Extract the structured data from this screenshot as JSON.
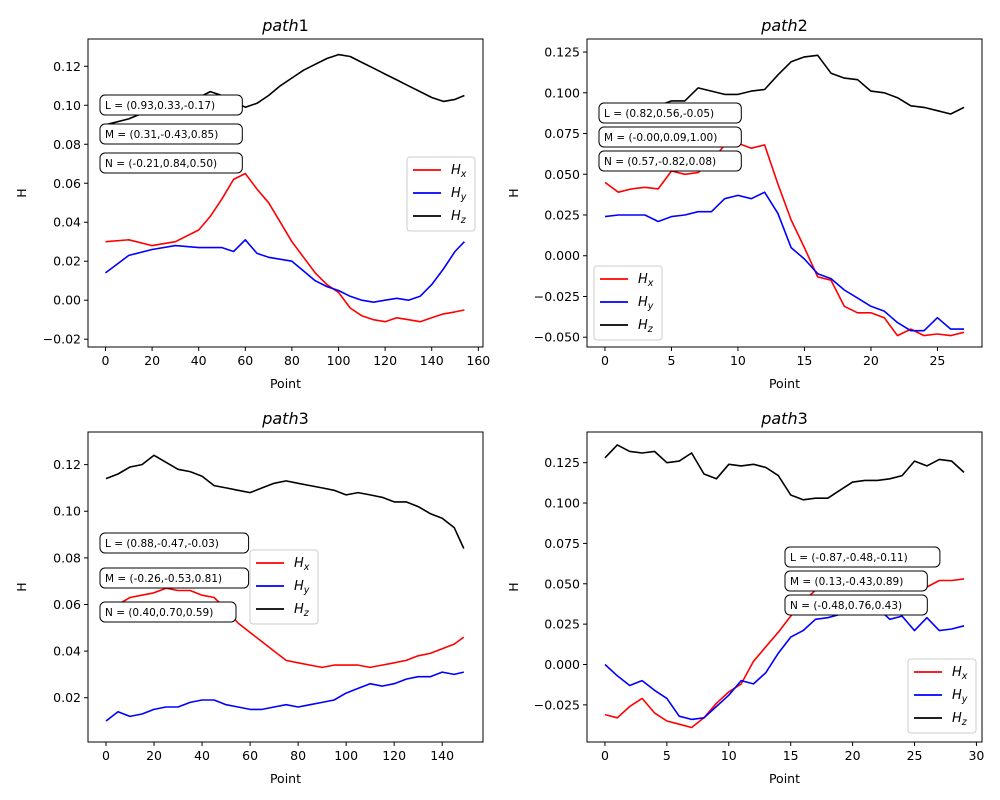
{
  "colors": {
    "Hx": "#ff0000",
    "Hy": "#0000ff",
    "Hz": "#000000"
  },
  "chart_data": [
    {
      "type": "line",
      "title": "path1",
      "xlabel": "Point",
      "ylabel": "H",
      "xlim": [
        -7.5,
        162
      ],
      "ylim": [
        -0.024,
        0.134
      ],
      "xticks": [
        0,
        20,
        40,
        60,
        80,
        100,
        120,
        140,
        160
      ],
      "yticks": [
        -0.02,
        0.0,
        0.02,
        0.04,
        0.06,
        0.08,
        0.1,
        0.12
      ],
      "ytick_labels": [
        "−0.02",
        "0.00",
        "0.02",
        "0.04",
        "0.06",
        "0.08",
        "0.10",
        "0.12"
      ],
      "annotations": [
        "L = (0.93,0.33,-0.17)",
        "M = (0.31,-0.43,0.85)",
        "N = (-0.21,0.84,0.50)"
      ],
      "annotation_placement": "left",
      "legend": {
        "placement": "center-right",
        "entries": [
          "Hx",
          "Hy",
          "Hz"
        ]
      },
      "series": [
        {
          "name": "Hx",
          "x": [
            0,
            10,
            20,
            30,
            40,
            45,
            50,
            55,
            60,
            65,
            70,
            75,
            80,
            85,
            90,
            95,
            100,
            105,
            110,
            115,
            120,
            125,
            130,
            135,
            140,
            145,
            150,
            154
          ],
          "values": [
            0.03,
            0.031,
            0.028,
            0.03,
            0.036,
            0.043,
            0.052,
            0.062,
            0.065,
            0.057,
            0.05,
            0.04,
            0.03,
            0.022,
            0.014,
            0.008,
            0.004,
            -0.004,
            -0.008,
            -0.01,
            -0.011,
            -0.009,
            -0.01,
            -0.011,
            -0.009,
            -0.007,
            -0.006,
            -0.005
          ]
        },
        {
          "name": "Hy",
          "x": [
            0,
            10,
            20,
            30,
            40,
            50,
            55,
            60,
            65,
            70,
            80,
            85,
            90,
            95,
            100,
            105,
            110,
            115,
            120,
            125,
            130,
            135,
            140,
            145,
            150,
            154
          ],
          "values": [
            0.014,
            0.023,
            0.026,
            0.028,
            0.027,
            0.027,
            0.025,
            0.031,
            0.024,
            0.022,
            0.02,
            0.015,
            0.01,
            0.007,
            0.005,
            0.002,
            0.0,
            -0.001,
            0.0,
            0.001,
            0.0,
            0.002,
            0.008,
            0.016,
            0.025,
            0.03
          ]
        },
        {
          "name": "Hz",
          "x": [
            0,
            10,
            20,
            30,
            40,
            45,
            50,
            55,
            60,
            65,
            70,
            75,
            80,
            85,
            90,
            95,
            100,
            105,
            110,
            115,
            120,
            125,
            130,
            135,
            140,
            145,
            150,
            154
          ],
          "values": [
            0.09,
            0.093,
            0.098,
            0.101,
            0.104,
            0.107,
            0.105,
            0.102,
            0.099,
            0.101,
            0.105,
            0.11,
            0.114,
            0.118,
            0.121,
            0.124,
            0.126,
            0.125,
            0.122,
            0.119,
            0.116,
            0.113,
            0.11,
            0.107,
            0.104,
            0.102,
            0.103,
            0.105
          ]
        }
      ]
    },
    {
      "type": "line",
      "title": "path2",
      "xlabel": "Point",
      "ylabel": "H",
      "xlim": [
        -1.35,
        28.35
      ],
      "ylim": [
        -0.056,
        0.133
      ],
      "xticks": [
        0,
        5,
        10,
        15,
        20,
        25
      ],
      "yticks": [
        -0.05,
        -0.025,
        0.0,
        0.025,
        0.05,
        0.075,
        0.1,
        0.125
      ],
      "ytick_labels": [
        "−0.050",
        "−0.025",
        "0.000",
        "0.025",
        "0.050",
        "0.075",
        "0.100",
        "0.125"
      ],
      "annotations": [
        "L = (0.82,0.56,-0.05)",
        "M = (-0.00,0.09,1.00)",
        "N = (0.57,-0.82,0.08)"
      ],
      "annotation_placement": "left",
      "legend": {
        "placement": "bottom-left",
        "entries": [
          "Hx",
          "Hy",
          "Hz"
        ]
      },
      "series": [
        {
          "name": "Hx",
          "x": [
            0,
            1,
            2,
            3,
            4,
            5,
            6,
            7,
            8,
            9,
            10,
            11,
            12,
            13,
            14,
            15,
            16,
            17,
            18,
            19,
            20,
            21,
            22,
            23,
            24,
            25,
            26,
            27
          ],
          "values": [
            0.045,
            0.039,
            0.041,
            0.042,
            0.041,
            0.052,
            0.05,
            0.051,
            0.058,
            0.068,
            0.069,
            0.066,
            0.068,
            0.044,
            0.022,
            0.005,
            -0.013,
            -0.015,
            -0.031,
            -0.035,
            -0.035,
            -0.038,
            -0.049,
            -0.045,
            -0.049,
            -0.048,
            -0.049,
            -0.047
          ]
        },
        {
          "name": "Hy",
          "x": [
            0,
            1,
            2,
            3,
            4,
            5,
            6,
            7,
            8,
            9,
            10,
            11,
            12,
            13,
            14,
            15,
            16,
            17,
            18,
            19,
            20,
            21,
            22,
            23,
            24,
            25,
            26,
            27
          ],
          "values": [
            0.024,
            0.025,
            0.025,
            0.025,
            0.021,
            0.024,
            0.025,
            0.027,
            0.027,
            0.035,
            0.037,
            0.035,
            0.039,
            0.026,
            0.005,
            -0.002,
            -0.011,
            -0.014,
            -0.021,
            -0.026,
            -0.031,
            -0.034,
            -0.041,
            -0.046,
            -0.046,
            -0.038,
            -0.045,
            -0.045
          ]
        },
        {
          "name": "Hz",
          "x": [
            0,
            1,
            2,
            3,
            4,
            5,
            6,
            7,
            8,
            9,
            10,
            11,
            12,
            13,
            14,
            15,
            16,
            17,
            18,
            19,
            20,
            21,
            22,
            23,
            24,
            25,
            26,
            27
          ],
          "values": [
            0.083,
            0.082,
            0.085,
            0.088,
            0.092,
            0.095,
            0.095,
            0.103,
            0.101,
            0.099,
            0.099,
            0.101,
            0.102,
            0.111,
            0.119,
            0.122,
            0.123,
            0.112,
            0.109,
            0.108,
            0.101,
            0.1,
            0.097,
            0.092,
            0.091,
            0.089,
            0.087,
            0.091
          ]
        }
      ]
    },
    {
      "type": "line",
      "title": "path3",
      "xlabel": "Point",
      "ylabel": "H",
      "xlim": [
        -7.5,
        157
      ],
      "ylim": [
        0.001,
        0.134
      ],
      "xticks": [
        0,
        20,
        40,
        60,
        80,
        100,
        120,
        140
      ],
      "yticks": [
        0.02,
        0.04,
        0.06,
        0.08,
        0.1,
        0.12
      ],
      "ytick_labels": [
        "0.02",
        "0.04",
        "0.06",
        "0.08",
        "0.10",
        "0.12"
      ],
      "annotations": [
        "L = (0.88,-0.47,-0.03)",
        "M = (-0.26,-0.53,0.81)",
        "N = (0.40,0.70,0.59)"
      ],
      "annotation_placement": "left",
      "legend": {
        "placement": "center",
        "entries": [
          "Hx",
          "Hy",
          "Hz"
        ]
      },
      "series": [
        {
          "name": "Hx",
          "x": [
            0,
            5,
            10,
            15,
            20,
            25,
            30,
            35,
            40,
            45,
            50,
            55,
            60,
            65,
            70,
            75,
            80,
            85,
            90,
            95,
            100,
            105,
            110,
            115,
            120,
            125,
            130,
            135,
            140,
            145,
            149
          ],
          "values": [
            0.058,
            0.06,
            0.063,
            0.064,
            0.065,
            0.067,
            0.066,
            0.066,
            0.064,
            0.063,
            0.058,
            0.052,
            0.048,
            0.044,
            0.04,
            0.036,
            0.035,
            0.034,
            0.033,
            0.034,
            0.034,
            0.034,
            0.033,
            0.034,
            0.035,
            0.036,
            0.038,
            0.039,
            0.041,
            0.043,
            0.046
          ]
        },
        {
          "name": "Hy",
          "x": [
            0,
            5,
            10,
            15,
            20,
            25,
            30,
            35,
            40,
            45,
            50,
            55,
            60,
            65,
            70,
            75,
            80,
            85,
            90,
            95,
            100,
            105,
            110,
            115,
            120,
            125,
            130,
            135,
            140,
            145,
            149
          ],
          "values": [
            0.01,
            0.014,
            0.012,
            0.013,
            0.015,
            0.016,
            0.016,
            0.018,
            0.019,
            0.019,
            0.017,
            0.016,
            0.015,
            0.015,
            0.016,
            0.017,
            0.016,
            0.017,
            0.018,
            0.019,
            0.022,
            0.024,
            0.026,
            0.025,
            0.026,
            0.028,
            0.029,
            0.029,
            0.031,
            0.03,
            0.031
          ]
        },
        {
          "name": "Hz",
          "x": [
            0,
            5,
            10,
            15,
            20,
            25,
            30,
            35,
            40,
            45,
            50,
            55,
            60,
            65,
            70,
            75,
            80,
            85,
            90,
            95,
            100,
            105,
            110,
            115,
            120,
            125,
            130,
            135,
            140,
            145,
            149
          ],
          "values": [
            0.114,
            0.116,
            0.119,
            0.12,
            0.124,
            0.121,
            0.118,
            0.117,
            0.115,
            0.111,
            0.11,
            0.109,
            0.108,
            0.11,
            0.112,
            0.113,
            0.112,
            0.111,
            0.11,
            0.109,
            0.107,
            0.108,
            0.107,
            0.106,
            0.104,
            0.104,
            0.102,
            0.099,
            0.097,
            0.093,
            0.084
          ]
        }
      ]
    },
    {
      "type": "line",
      "title": "path3",
      "xlabel": "Point",
      "ylabel": "H",
      "xlim": [
        -1.45,
        30.45
      ],
      "ylim": [
        -0.048,
        0.144
      ],
      "xticks": [
        0,
        5,
        10,
        15,
        20,
        25,
        30
      ],
      "yticks": [
        -0.025,
        0.0,
        0.025,
        0.05,
        0.075,
        0.1,
        0.125
      ],
      "ytick_labels": [
        "−0.025",
        "0.000",
        "0.025",
        "0.050",
        "0.075",
        "0.100",
        "0.125"
      ],
      "annotations": [
        "L = (-0.87,-0.48,-0.11)",
        "M = (0.13,-0.43,0.89)",
        "N = (-0.48,0.76,0.43)"
      ],
      "annotation_placement": "center",
      "legend": {
        "placement": "lower-right",
        "entries": [
          "Hx",
          "Hy",
          "Hz"
        ]
      },
      "series": [
        {
          "name": "Hx",
          "x": [
            0,
            1,
            2,
            3,
            4,
            5,
            6,
            7,
            8,
            9,
            10,
            11,
            12,
            13,
            14,
            15,
            16,
            17,
            18,
            19,
            20,
            21,
            22,
            23,
            24,
            25,
            26,
            27,
            28,
            29
          ],
          "values": [
            -0.031,
            -0.033,
            -0.026,
            -0.021,
            -0.03,
            -0.035,
            -0.037,
            -0.039,
            -0.033,
            -0.024,
            -0.017,
            -0.012,
            0.002,
            0.011,
            0.02,
            0.03,
            0.039,
            0.046,
            0.048,
            0.05,
            0.051,
            0.051,
            0.052,
            0.052,
            0.051,
            0.052,
            0.048,
            0.052,
            0.052,
            0.053
          ]
        },
        {
          "name": "Hy",
          "x": [
            0,
            1,
            2,
            3,
            4,
            5,
            6,
            7,
            8,
            9,
            10,
            11,
            12,
            13,
            14,
            15,
            16,
            17,
            18,
            19,
            20,
            21,
            22,
            23,
            24,
            25,
            26,
            27,
            28,
            29
          ],
          "values": [
            0.0,
            -0.007,
            -0.013,
            -0.01,
            -0.016,
            -0.021,
            -0.032,
            -0.034,
            -0.033,
            -0.026,
            -0.019,
            -0.01,
            -0.012,
            -0.005,
            0.007,
            0.017,
            0.021,
            0.028,
            0.029,
            0.031,
            0.033,
            0.034,
            0.035,
            0.028,
            0.03,
            0.021,
            0.029,
            0.021,
            0.022,
            0.024
          ]
        },
        {
          "name": "Hz",
          "x": [
            0,
            1,
            2,
            3,
            4,
            5,
            6,
            7,
            8,
            9,
            10,
            11,
            12,
            13,
            14,
            15,
            16,
            17,
            18,
            19,
            20,
            21,
            22,
            23,
            24,
            25,
            26,
            27,
            28,
            29
          ],
          "values": [
            0.128,
            0.136,
            0.132,
            0.131,
            0.132,
            0.125,
            0.126,
            0.131,
            0.118,
            0.115,
            0.124,
            0.123,
            0.124,
            0.122,
            0.117,
            0.105,
            0.102,
            0.103,
            0.103,
            0.108,
            0.113,
            0.114,
            0.114,
            0.115,
            0.117,
            0.126,
            0.123,
            0.127,
            0.126,
            0.119
          ]
        }
      ]
    }
  ]
}
